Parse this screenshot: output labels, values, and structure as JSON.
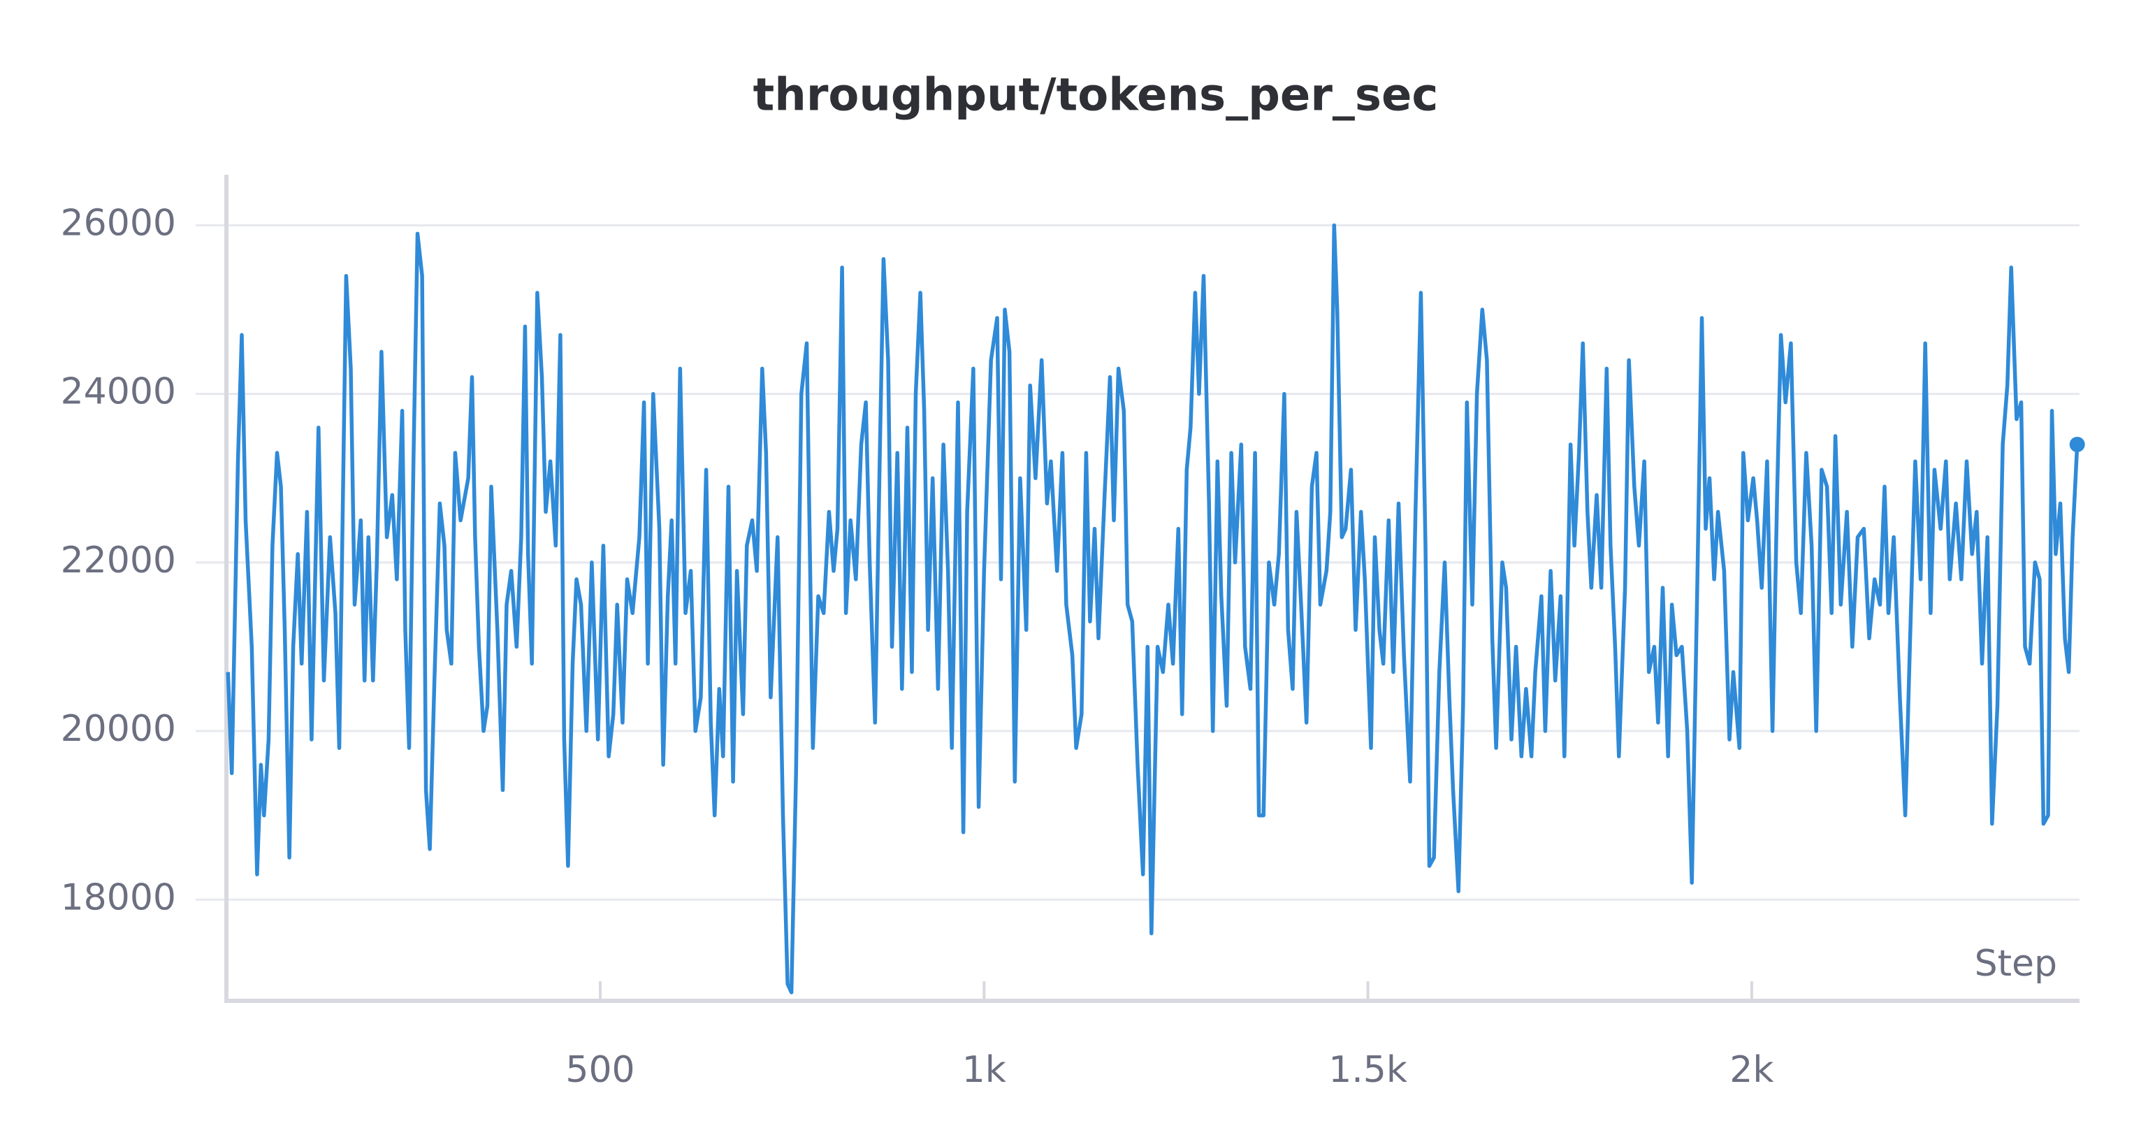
{
  "chart_data": {
    "type": "line",
    "title": "throughput/tokens_per_sec",
    "xlabel": "Step",
    "x": [
      15,
      20,
      28,
      33,
      38,
      46,
      53,
      58,
      62,
      68,
      73,
      79,
      84,
      89,
      95,
      100,
      106,
      111,
      118,
      124,
      133,
      140,
      148,
      155,
      160,
      169,
      175,
      180,
      188,
      193,
      198,
      204,
      209,
      215,
      222,
      229,
      235,
      242,
      246,
      251,
      257,
      262,
      268,
      273,
      278,
      284,
      291,
      297,
      300,
      306,
      311,
      318,
      328,
      333,
      337,
      342,
      348,
      353,
      358,
      366,
      373,
      378,
      384,
      391,
      397,
      402,
      406,
      411,
      418,
      424,
      429,
      435,
      442,
      448,
      453,
      458,
      464,
      469,
      475,
      482,
      489,
      497,
      504,
      511,
      517,
      522,
      529,
      535,
      542,
      551,
      557,
      562,
      569,
      577,
      582,
      588,
      593,
      598,
      604,
      611,
      618,
      624,
      631,
      638,
      644,
      649,
      655,
      660,
      667,
      673,
      678,
      686,
      691,
      698,
      704,
      711,
      716,
      722,
      731,
      738,
      744,
      749,
      755,
      762,
      769,
      777,
      784,
      791,
      798,
      804,
      809,
      815,
      820,
      826,
      833,
      840,
      846,
      851,
      858,
      864,
      869,
      875,
      880,
      887,
      893,
      900,
      906,
      911,
      917,
      922,
      927,
      933,
      940,
      947,
      953,
      958,
      966,
      973,
      978,
      986,
      993,
      1000,
      1009,
      1017,
      1022,
      1027,
      1033,
      1040,
      1047,
      1055,
      1060,
      1067,
      1075,
      1082,
      1087,
      1095,
      1102,
      1107,
      1115,
      1120,
      1127,
      1133,
      1138,
      1144,
      1149,
      1157,
      1164,
      1169,
      1175,
      1182,
      1187,
      1193,
      1200,
      1207,
      1213,
      1218,
      1226,
      1233,
      1240,
      1246,
      1253,
      1258,
      1264,
      1269,
      1275,
      1280,
      1286,
      1293,
      1298,
      1304,
      1309,
      1316,
      1322,
      1327,
      1335,
      1340,
      1347,
      1353,
      1358,
      1364,
      1371,
      1378,
      1384,
      1391,
      1396,
      1402,
      1407,
      1413,
      1420,
      1427,
      1433,
      1438,
      1446,
      1451,
      1456,
      1460,
      1466,
      1471,
      1478,
      1484,
      1491,
      1496,
      1504,
      1509,
      1515,
      1520,
      1527,
      1533,
      1540,
      1547,
      1555,
      1562,
      1569,
      1575,
      1580,
      1586,
      1593,
      1600,
      1606,
      1611,
      1618,
      1624,
      1629,
      1636,
      1642,
      1649,
      1655,
      1662,
      1667,
      1675,
      1680,
      1687,
      1693,
      1700,
      1706,
      1713,
      1718,
      1726,
      1731,
      1738,
      1744,
      1751,
      1756,
      1764,
      1769,
      1775,
      1780,
      1786,
      1791,
      1798,
      1804,
      1811,
      1816,
      1822,
      1827,
      1835,
      1840,
      1847,
      1853,
      1860,
      1866,
      1873,
      1878,
      1884,
      1891,
      1896,
      1902,
      1909,
      1916,
      1922,
      1929,
      1935,
      1940,
      1945,
      1951,
      1956,
      1964,
      1971,
      1976,
      1984,
      1989,
      1995,
      2002,
      2007,
      2013,
      2020,
      2027,
      2033,
      2038,
      2044,
      2051,
      2058,
      2064,
      2071,
      2078,
      2084,
      2091,
      2098,
      2104,
      2109,
      2116,
      2124,
      2131,
      2138,
      2146,
      2153,
      2160,
      2167,
      2173,
      2178,
      2185,
      2193,
      2200,
      2206,
      2213,
      2220,
      2226,
      2233,
      2238,
      2246,
      2253,
      2258,
      2266,
      2273,
      2280,
      2287,
      2293,
      2300,
      2307,
      2313,
      2320,
      2327,
      2333,
      2338,
      2345,
      2351,
      2356,
      2362,
      2369,
      2375,
      2380,
      2386,
      2391,
      2396,
      2402,
      2408,
      2413,
      2418,
      2424
    ],
    "series": [
      {
        "name": "throughput/tokens_per_sec",
        "color": "#2f8ad8",
        "values": [
          20700,
          19500,
          23200,
          24700,
          22500,
          21000,
          18300,
          19600,
          19000,
          19900,
          22200,
          23300,
          22900,
          21200,
          18500,
          21000,
          22100,
          20800,
          22600,
          19900,
          23600,
          20600,
          22300,
          21400,
          19800,
          25400,
          24300,
          21500,
          22500,
          20600,
          22300,
          20600,
          22000,
          24500,
          22300,
          22800,
          21800,
          23800,
          21200,
          19800,
          23400,
          25900,
          25400,
          19300,
          18600,
          20600,
          22700,
          22200,
          21200,
          20800,
          23300,
          22500,
          23000,
          24200,
          22300,
          21000,
          20000,
          20300,
          22900,
          21200,
          19300,
          21500,
          21900,
          21000,
          22300,
          24800,
          22100,
          20800,
          25200,
          24200,
          22600,
          23200,
          22200,
          24700,
          19900,
          18400,
          20800,
          21800,
          21500,
          20000,
          22000,
          19900,
          22200,
          19700,
          20200,
          21500,
          20100,
          21800,
          21400,
          22300,
          23900,
          20800,
          24000,
          22400,
          19600,
          21600,
          22500,
          20800,
          24300,
          21400,
          21900,
          20000,
          20400,
          23100,
          20100,
          19000,
          20500,
          19700,
          22900,
          19400,
          21900,
          20200,
          22200,
          22500,
          21900,
          24300,
          23300,
          20400,
          22300,
          19000,
          17000,
          16900,
          19500,
          24000,
          24600,
          19800,
          21600,
          21400,
          22600,
          21900,
          22400,
          25500,
          21400,
          22500,
          21800,
          23400,
          23900,
          22000,
          20100,
          23200,
          25600,
          24400,
          21000,
          23300,
          20500,
          23600,
          20700,
          24000,
          25200,
          23800,
          21200,
          23000,
          20500,
          23400,
          21900,
          19800,
          23900,
          18800,
          22600,
          24300,
          19100,
          21900,
          24400,
          24900,
          21800,
          25000,
          24500,
          19400,
          23000,
          21200,
          24100,
          23000,
          24400,
          22700,
          23200,
          21900,
          23300,
          21500,
          20900,
          19800,
          20200,
          23300,
          21300,
          22400,
          21100,
          22800,
          24200,
          22500,
          24300,
          23800,
          21500,
          21300,
          19600,
          18300,
          21000,
          17600,
          21000,
          20700,
          21500,
          20800,
          22400,
          20200,
          23100,
          23600,
          25200,
          24000,
          25400,
          22700,
          20000,
          23200,
          21600,
          20300,
          23300,
          22000,
          23400,
          21000,
          20500,
          23300,
          19000,
          19000,
          22000,
          21500,
          22100,
          24000,
          21200,
          20500,
          22600,
          21500,
          20100,
          22900,
          23300,
          21500,
          21900,
          22600,
          26000,
          25000,
          22300,
          22400,
          23100,
          21200,
          22600,
          21800,
          19800,
          22300,
          21200,
          20800,
          22500,
          20700,
          22700,
          20900,
          19400,
          22600,
          25200,
          22200,
          18400,
          18500,
          20700,
          22000,
          20400,
          19300,
          18100,
          20300,
          23900,
          21500,
          24000,
          25000,
          24400,
          21100,
          19800,
          22000,
          21700,
          19900,
          21000,
          19700,
          20500,
          19700,
          20700,
          21600,
          20000,
          21900,
          20600,
          21600,
          19700,
          23400,
          22200,
          23300,
          24600,
          22600,
          21700,
          22800,
          21700,
          24300,
          22200,
          21000,
          19700,
          21700,
          24400,
          22900,
          22200,
          23200,
          20700,
          21000,
          20100,
          21700,
          19700,
          21500,
          20900,
          21000,
          20000,
          18200,
          21700,
          24900,
          22400,
          23000,
          21800,
          22600,
          21900,
          19900,
          20700,
          19800,
          23300,
          22500,
          23000,
          22500,
          21700,
          23200,
          20000,
          22800,
          24700,
          23900,
          24600,
          22000,
          21400,
          23300,
          22200,
          20000,
          23100,
          22900,
          21400,
          23500,
          21500,
          22600,
          21000,
          22300,
          22400,
          21100,
          21800,
          21500,
          22900,
          21400,
          22300,
          20400,
          19000,
          21000,
          23200,
          21800,
          24600,
          21400,
          23100,
          22400,
          23200,
          21800,
          22700,
          21800,
          23200,
          22100,
          22600,
          20800,
          22300,
          18900,
          20300,
          23400,
          24100,
          25500,
          23700,
          23900,
          21000,
          20800,
          22000,
          21800,
          18900,
          19000,
          23800,
          22100,
          22700,
          21100,
          20700,
          22300,
          23400
        ]
      }
    ],
    "xlim": [
      13,
      2427
    ],
    "ylim": [
      16800,
      26600
    ],
    "xticks": [
      500,
      {
        "value": 1000,
        "label": "1k"
      },
      {
        "value": 1500,
        "label": "1.5k"
      },
      {
        "value": 2000,
        "label": "2k"
      }
    ],
    "yticks": [
      18000,
      20000,
      22000,
      24000,
      26000
    ],
    "grid": true
  }
}
